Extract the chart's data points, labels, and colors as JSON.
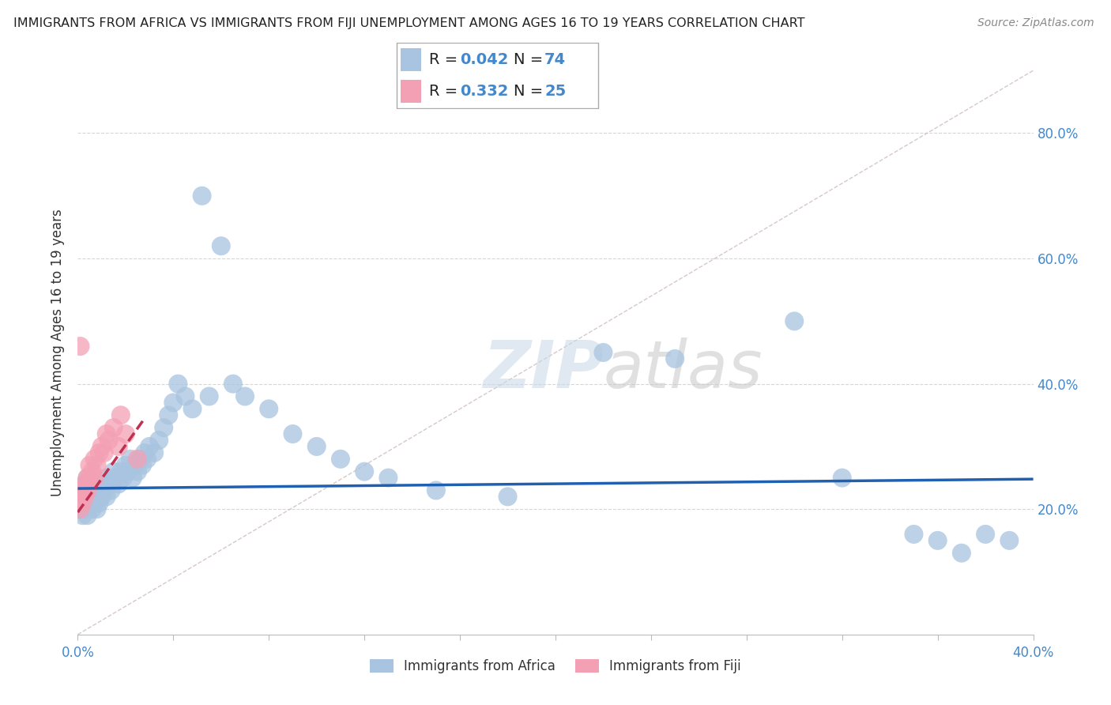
{
  "title": "IMMIGRANTS FROM AFRICA VS IMMIGRANTS FROM FIJI UNEMPLOYMENT AMONG AGES 16 TO 19 YEARS CORRELATION CHART",
  "source": "Source: ZipAtlas.com",
  "ylabel": "Unemployment Among Ages 16 to 19 years",
  "xlim": [
    0.0,
    0.4
  ],
  "ylim": [
    0.0,
    0.9
  ],
  "xtick_positions": [
    0.0,
    0.04,
    0.08,
    0.12,
    0.16,
    0.2,
    0.24,
    0.28,
    0.32,
    0.36,
    0.4
  ],
  "xtick_labels": [
    "0.0%",
    "",
    "",
    "",
    "",
    "",
    "",
    "",
    "",
    "",
    "40.0%"
  ],
  "ytick_positions": [
    0.2,
    0.4,
    0.6,
    0.8
  ],
  "ytick_labels": [
    "20.0%",
    "40.0%",
    "60.0%",
    "80.0%"
  ],
  "africa_R": 0.042,
  "africa_N": 74,
  "fiji_R": 0.332,
  "fiji_N": 25,
  "africa_color": "#a8c4e0",
  "fiji_color": "#f4a0b4",
  "africa_line_color": "#2060b0",
  "fiji_line_color": "#c03050",
  "grid_color": "#cccccc",
  "tick_color": "#4488cc",
  "africa_x": [
    0.001,
    0.001,
    0.002,
    0.002,
    0.003,
    0.003,
    0.003,
    0.004,
    0.004,
    0.004,
    0.005,
    0.005,
    0.006,
    0.006,
    0.006,
    0.007,
    0.007,
    0.008,
    0.008,
    0.009,
    0.009,
    0.01,
    0.01,
    0.011,
    0.012,
    0.012,
    0.013,
    0.014,
    0.015,
    0.016,
    0.017,
    0.018,
    0.019,
    0.02,
    0.021,
    0.022,
    0.023,
    0.024,
    0.025,
    0.026,
    0.027,
    0.028,
    0.029,
    0.03,
    0.032,
    0.034,
    0.036,
    0.038,
    0.04,
    0.042,
    0.045,
    0.048,
    0.052,
    0.055,
    0.06,
    0.065,
    0.07,
    0.08,
    0.09,
    0.1,
    0.11,
    0.12,
    0.13,
    0.15,
    0.18,
    0.22,
    0.25,
    0.3,
    0.32,
    0.35,
    0.36,
    0.37,
    0.38,
    0.39
  ],
  "africa_y": [
    0.22,
    0.2,
    0.19,
    0.23,
    0.21,
    0.24,
    0.2,
    0.22,
    0.19,
    0.25,
    0.21,
    0.23,
    0.2,
    0.22,
    0.24,
    0.21,
    0.23,
    0.2,
    0.22,
    0.21,
    0.23,
    0.22,
    0.24,
    0.23,
    0.25,
    0.22,
    0.24,
    0.23,
    0.26,
    0.25,
    0.24,
    0.26,
    0.25,
    0.27,
    0.26,
    0.28,
    0.25,
    0.27,
    0.26,
    0.28,
    0.27,
    0.29,
    0.28,
    0.3,
    0.29,
    0.31,
    0.33,
    0.35,
    0.37,
    0.4,
    0.38,
    0.36,
    0.7,
    0.38,
    0.62,
    0.4,
    0.38,
    0.36,
    0.32,
    0.3,
    0.28,
    0.26,
    0.25,
    0.23,
    0.22,
    0.45,
    0.44,
    0.5,
    0.25,
    0.16,
    0.15,
    0.13,
    0.16,
    0.15
  ],
  "fiji_x": [
    0.001,
    0.001,
    0.002,
    0.002,
    0.003,
    0.003,
    0.004,
    0.004,
    0.005,
    0.005,
    0.006,
    0.007,
    0.007,
    0.008,
    0.009,
    0.01,
    0.011,
    0.012,
    0.013,
    0.015,
    0.017,
    0.018,
    0.02,
    0.025,
    0.001
  ],
  "fiji_y": [
    0.22,
    0.2,
    0.21,
    0.23,
    0.24,
    0.22,
    0.25,
    0.23,
    0.27,
    0.25,
    0.26,
    0.28,
    0.25,
    0.27,
    0.29,
    0.3,
    0.29,
    0.32,
    0.31,
    0.33,
    0.3,
    0.35,
    0.32,
    0.28,
    0.46
  ],
  "africa_line_x": [
    0.0,
    0.4
  ],
  "africa_line_y": [
    0.233,
    0.248
  ],
  "fiji_line_x": [
    0.0,
    0.028
  ],
  "fiji_line_y": [
    0.195,
    0.345
  ],
  "diag_line_x": [
    0.0,
    0.4
  ],
  "diag_line_y": [
    0.0,
    0.9
  ]
}
